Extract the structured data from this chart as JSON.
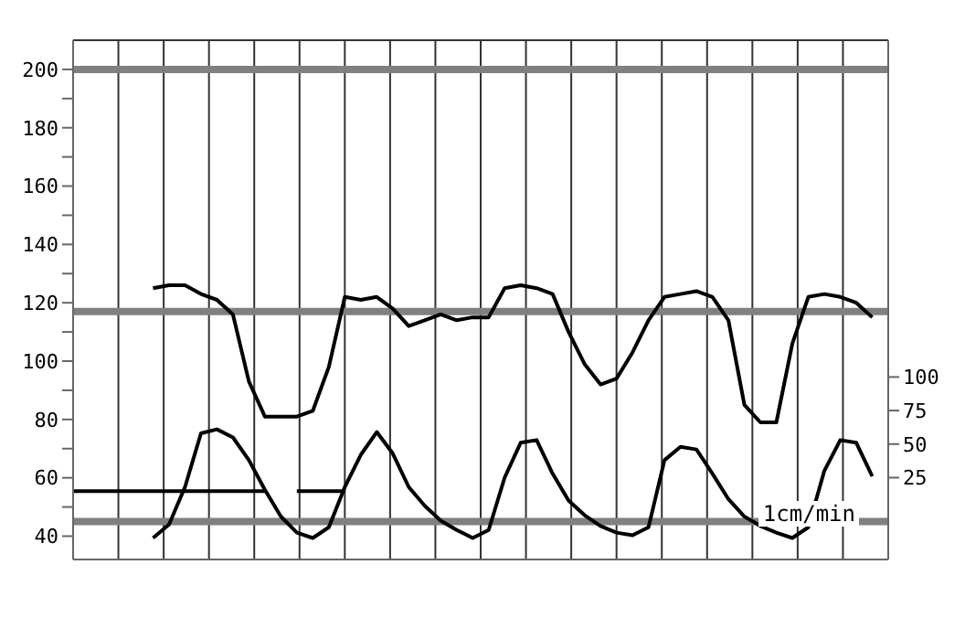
{
  "chart_data": {
    "type": "line",
    "annotations": [
      "1cm/min"
    ],
    "categories": [
      null,
      null,
      null,
      null,
      null,
      null,
      null,
      null,
      null,
      null,
      null,
      null,
      null,
      null,
      null,
      null,
      null,
      null,
      null,
      null,
      null,
      null,
      null,
      null,
      null,
      null,
      null,
      null,
      null,
      null,
      null,
      null,
      null,
      null,
      null,
      null,
      null,
      null,
      null,
      null,
      null,
      null,
      null,
      null,
      null,
      null,
      null,
      null,
      null,
      null,
      null,
      null
    ],
    "ylim": [
      32,
      210
    ],
    "yticks": [
      40,
      {
        "value": 50,
        "label": null
      },
      60,
      {
        "value": 70,
        "label": null
      },
      80,
      {
        "value": 90,
        "label": null
      },
      100,
      {
        "value": 110,
        "label": null
      },
      120,
      {
        "value": 130,
        "label": null
      },
      140,
      {
        "value": 150,
        "label": null
      },
      160,
      {
        "value": 170,
        "label": null
      },
      180,
      {
        "value": 190,
        "label": null
      },
      200
    ],
    "y2lim": [
      -36,
      351
    ],
    "y2ticks": [
      25,
      50,
      75,
      100
    ],
    "grid": true,
    "marker": "none",
    "line_style": "solid",
    "ref_lines": [
      {
        "axis": "y",
        "value": 200,
        "color": "#808080"
      },
      {
        "axis": "y",
        "value": 117,
        "color": "#808080"
      },
      {
        "axis": "y",
        "value": 45,
        "color": "#808080"
      }
    ],
    "series": [
      {
        "color": "#000000",
        "values": [
          null,
          null,
          null,
          null,
          null,
          125,
          126,
          126,
          123,
          121,
          116,
          93,
          81,
          81,
          81,
          83,
          98,
          122,
          121,
          122,
          118,
          112,
          114,
          116,
          114,
          115,
          115,
          125,
          126,
          125,
          123,
          110,
          99,
          92,
          94,
          103,
          114,
          122,
          123,
          124,
          122,
          114,
          85,
          79,
          79,
          106,
          122,
          123,
          122,
          120,
          115,
          null
        ]
      },
      {
        "color": "#000000",
        "axis": "y2",
        "values": [
          null,
          null,
          null,
          null,
          null,
          -20,
          -10,
          18,
          58,
          61,
          55,
          38,
          16,
          -4,
          -16,
          -20,
          -12,
          18,
          42,
          59,
          43,
          18,
          4,
          -7,
          -14,
          -20,
          -14,
          25,
          51,
          53,
          28,
          8,
          -3,
          -11,
          -16,
          -18,
          -12,
          38,
          48,
          46,
          28,
          9,
          -4,
          -11,
          -16,
          -20,
          -12,
          30,
          53,
          51,
          26,
          null
        ]
      },
      {
        "color": "#000000",
        "axis": "y2",
        "values": [
          15,
          15,
          15,
          15,
          15,
          15,
          15,
          15,
          15,
          15,
          15,
          15,
          15,
          null,
          15,
          15,
          15,
          15,
          null,
          null,
          null,
          null,
          null,
          null,
          null,
          null,
          null,
          null,
          null,
          null,
          null,
          null,
          null,
          null,
          null,
          null,
          null,
          null,
          null,
          null,
          null,
          null,
          null,
          null,
          null,
          null,
          null,
          null,
          null,
          null,
          null,
          null
        ]
      }
    ]
  }
}
